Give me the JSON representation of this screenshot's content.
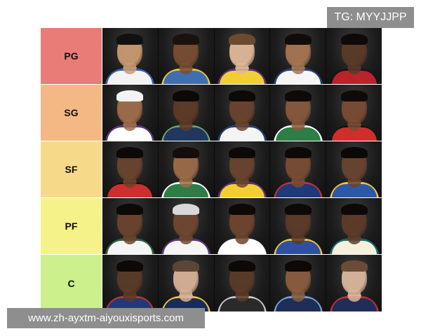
{
  "tag_label": "TG: MYYJJPP",
  "tiers": [
    {
      "label": "PG",
      "color": "#e97c77",
      "players": [
        {
          "skin": "#c99a72",
          "jersey": "#f3f3f3",
          "accent": "#2f5fb3",
          "hair": "#111"
        },
        {
          "skin": "#7a4c33",
          "jersey": "#3e6fb0",
          "accent": "#f0c43a",
          "hair": "#1a120e"
        },
        {
          "skin": "#e0b898",
          "jersey": "#f1cf33",
          "accent": "#5a2c87",
          "hair": "#6b4a2f"
        },
        {
          "skin": "#a57553",
          "jersey": "#f6f6f6",
          "accent": "#1d3f7a",
          "hair": "#120c08"
        },
        {
          "skin": "#5b3a28",
          "jersey": "#b8232c",
          "accent": "#111111",
          "hair": "#0e0a08"
        }
      ]
    },
    {
      "label": "SG",
      "color": "#f3b884",
      "players": [
        {
          "skin": "#a06c4a",
          "jersey": "#ffffff",
          "accent": "#5b2f8b",
          "hair": "#f3f3f3"
        },
        {
          "skin": "#5e3a27",
          "jersey": "#20375f",
          "accent": "#66a860",
          "hair": "#0d0907"
        },
        {
          "skin": "#6a432e",
          "jersey": "#f4f4f4",
          "accent": "#1f3c7a",
          "hair": "#0d0907"
        },
        {
          "skin": "#87593c",
          "jersey": "#2e7d46",
          "accent": "#ffffff",
          "hair": "#0e0a08"
        },
        {
          "skin": "#7a4c33",
          "jersey": "#cf2f2c",
          "accent": "#111111",
          "hair": "#100b08"
        }
      ]
    },
    {
      "label": "SF",
      "color": "#f7d98a",
      "players": [
        {
          "skin": "#6a432e",
          "jersey": "#cd2e2e",
          "accent": "#111111",
          "hair": "#0d0907"
        },
        {
          "skin": "#9b6b49",
          "jersey": "#2e7d46",
          "accent": "#ffffff",
          "hair": "#140d09"
        },
        {
          "skin": "#6a432e",
          "jersey": "#f1cf33",
          "accent": "#5a2c87",
          "hair": "#0d0907"
        },
        {
          "skin": "#7a4c33",
          "jersey": "#1f3a7a",
          "accent": "#cc2d2d",
          "hair": "#0d0907"
        },
        {
          "skin": "#6a432e",
          "jersey": "#2b58a8",
          "accent": "#f0c43a",
          "hair": "#0b0806"
        }
      ]
    },
    {
      "label": "PF",
      "color": "#f6f28a",
      "players": [
        {
          "skin": "#6a432e",
          "jersey": "#f5f5f5",
          "accent": "#2a5e3c",
          "hair": "#0d0907"
        },
        {
          "skin": "#6f4731",
          "jersey": "#f5f5f5",
          "accent": "#5d2c88",
          "hair": "#d8d8d8"
        },
        {
          "skin": "#6d452f",
          "jersey": "#ffffff",
          "accent": "#ffffff",
          "hair": "#0d0907"
        },
        {
          "skin": "#5c3a28",
          "jersey": "#2e4fa3",
          "accent": "#f0c43a",
          "hair": "#0d0907"
        },
        {
          "skin": "#5e3b29",
          "jersey": "#f4f0dc",
          "accent": "#0f6a6f",
          "hair": "#0d0907"
        }
      ]
    },
    {
      "label": "C",
      "color": "#cbf08c",
      "players": [
        {
          "skin": "#5b3a28",
          "jersey": "#1f3a7a",
          "accent": "#cc2d2d",
          "hair": "#0d0907"
        },
        {
          "skin": "#d6b296",
          "jersey": "#182c5b",
          "accent": "#f0c43a",
          "hair": "#5b4536"
        },
        {
          "skin": "#5b3a28",
          "jersey": "#2a2a2a",
          "accent": "#c9c9c9",
          "hair": "#0d0907"
        },
        {
          "skin": "#8a5c40",
          "jersey": "#1e2e58",
          "accent": "#78a2d6",
          "hair": "#0d0907"
        },
        {
          "skin": "#d9b79c",
          "jersey": "#1e2e58",
          "accent": "#cc2d2d",
          "hair": "#6a4b35"
        }
      ]
    }
  ],
  "watermark_text": "www.zh-ayxtm-aiyouxisports.com"
}
